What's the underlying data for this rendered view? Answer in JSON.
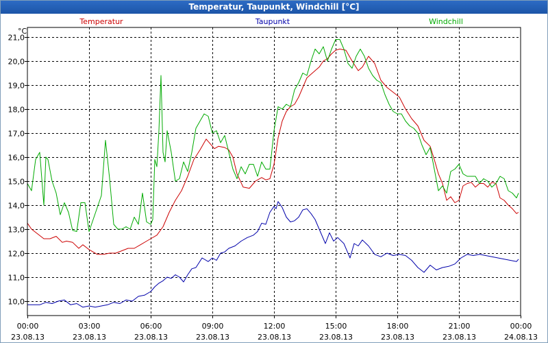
{
  "window": {
    "title": "Temperatur, Taupunkt, Windchill [°C]"
  },
  "chart_data": {
    "type": "line",
    "title": "Temperatur, Taupunkt, Windchill [°C]",
    "ylabel": "°C",
    "ylim": [
      9.4,
      21.4
    ],
    "xlim": [
      0,
      24
    ],
    "grid": true,
    "y_ticks": [
      "10,0",
      "11,0",
      "12,0",
      "13,0",
      "14,0",
      "15,0",
      "16,0",
      "17,0",
      "18,0",
      "19,0",
      "20,0",
      "21,0"
    ],
    "y_tick_values": [
      10,
      11,
      12,
      13,
      14,
      15,
      16,
      17,
      18,
      19,
      20,
      21
    ],
    "x_tick_values": [
      0,
      3,
      6,
      9,
      12,
      15,
      18,
      21,
      24
    ],
    "x_ticks_time": [
      "00:00",
      "03:00",
      "06:00",
      "09:00",
      "12:00",
      "15:00",
      "18:00",
      "21:00",
      "00:00"
    ],
    "x_ticks_date": [
      "23.08.13",
      "23.08.13",
      "23.08.13",
      "23.08.13",
      "23.08.13",
      "23.08.13",
      "23.08.13",
      "23.08.13",
      "24.08.13"
    ],
    "legend_position": "top",
    "series": [
      {
        "name": "Temperatur",
        "color": "#cc0000",
        "x": [
          0,
          0.2,
          0.5,
          0.8,
          1.1,
          1.4,
          1.7,
          1.9,
          2.2,
          2.5,
          2.7,
          3.0,
          3.2,
          3.4,
          3.7,
          4.0,
          4.3,
          4.6,
          4.9,
          5.2,
          5.5,
          5.8,
          6.0,
          6.3,
          6.6,
          6.9,
          7.2,
          7.5,
          7.8,
          8.1,
          8.4,
          8.7,
          8.9,
          9.1,
          9.3,
          9.6,
          9.8,
          10.0,
          10.2,
          10.5,
          10.8,
          11.1,
          11.4,
          11.6,
          11.8,
          12.0,
          12.2,
          12.4,
          12.6,
          12.8,
          13.0,
          13.2,
          13.4,
          13.6,
          13.8,
          14.0,
          14.2,
          14.4,
          14.6,
          14.8,
          15.0,
          15.2,
          15.5,
          15.8,
          16.1,
          16.3,
          16.6,
          16.9,
          17.2,
          17.5,
          17.8,
          18.1,
          18.4,
          18.7,
          19.0,
          19.3,
          19.6,
          19.8,
          20.0,
          20.2,
          20.4,
          20.6,
          20.8,
          21.0,
          21.2,
          21.4,
          21.6,
          21.8,
          22.0,
          22.2,
          22.4,
          22.6,
          22.8,
          23.0,
          23.2,
          23.4,
          23.6,
          23.8,
          23.9
        ],
        "values": [
          13.25,
          13.0,
          12.8,
          12.6,
          12.6,
          12.7,
          12.45,
          12.5,
          12.45,
          12.2,
          12.35,
          12.15,
          12.05,
          11.95,
          11.95,
          12.0,
          12.0,
          12.1,
          12.2,
          12.2,
          12.35,
          12.5,
          12.6,
          12.75,
          13.1,
          13.7,
          14.2,
          14.6,
          15.2,
          15.9,
          16.3,
          16.75,
          16.55,
          16.35,
          16.45,
          16.4,
          16.3,
          16.0,
          15.3,
          14.75,
          14.7,
          15.0,
          15.15,
          15.05,
          15.1,
          15.7,
          16.8,
          17.5,
          17.9,
          18.1,
          18.2,
          18.5,
          18.9,
          19.3,
          19.45,
          19.6,
          19.75,
          20.0,
          20.1,
          20.3,
          20.45,
          20.5,
          20.45,
          20.0,
          19.6,
          19.75,
          20.2,
          19.9,
          19.2,
          18.9,
          18.7,
          18.5,
          18.0,
          17.6,
          17.3,
          16.7,
          16.45,
          15.9,
          15.3,
          14.9,
          14.2,
          14.35,
          14.1,
          14.2,
          14.8,
          14.9,
          14.95,
          14.75,
          14.9,
          14.9,
          14.75,
          14.95,
          14.9,
          14.3,
          14.2,
          14.0,
          13.85,
          13.65,
          13.7
        ]
      },
      {
        "name": "Taupunkt",
        "color": "#0000aa",
        "x": [
          0,
          0.3,
          0.6,
          0.9,
          1.2,
          1.5,
          1.8,
          2.1,
          2.4,
          2.7,
          3.0,
          3.3,
          3.6,
          3.9,
          4.2,
          4.5,
          4.8,
          5.1,
          5.4,
          5.7,
          6.0,
          6.2,
          6.4,
          6.6,
          6.8,
          7.0,
          7.2,
          7.4,
          7.6,
          7.8,
          8.0,
          8.2,
          8.5,
          8.8,
          9.0,
          9.2,
          9.4,
          9.6,
          9.8,
          10.1,
          10.4,
          10.7,
          11.0,
          11.2,
          11.4,
          11.6,
          11.8,
          12.0,
          12.1,
          12.2,
          12.4,
          12.6,
          12.8,
          13.0,
          13.2,
          13.4,
          13.6,
          13.8,
          14.0,
          14.2,
          14.5,
          14.7,
          14.9,
          15.1,
          15.4,
          15.7,
          15.9,
          16.1,
          16.3,
          16.6,
          16.9,
          17.2,
          17.5,
          17.8,
          18.1,
          18.4,
          18.7,
          19.0,
          19.3,
          19.6,
          19.9,
          20.2,
          20.5,
          20.8,
          21.1,
          21.4,
          21.7,
          22.0,
          22.3,
          22.6,
          22.9,
          23.2,
          23.5,
          23.8,
          23.9
        ],
        "values": [
          9.85,
          9.85,
          9.85,
          9.95,
          9.9,
          10.0,
          10.05,
          9.85,
          9.9,
          9.75,
          9.8,
          9.75,
          9.8,
          9.85,
          9.95,
          9.9,
          10.05,
          10.0,
          10.2,
          10.25,
          10.4,
          10.6,
          10.75,
          10.85,
          11.0,
          10.95,
          11.1,
          11.0,
          10.8,
          11.1,
          11.35,
          11.4,
          11.8,
          11.65,
          11.8,
          11.7,
          12.0,
          12.05,
          12.2,
          12.3,
          12.5,
          12.65,
          12.75,
          12.9,
          13.25,
          13.2,
          13.7,
          13.95,
          13.85,
          14.15,
          13.9,
          13.5,
          13.3,
          13.35,
          13.5,
          13.8,
          13.85,
          13.65,
          13.4,
          13.0,
          12.4,
          12.85,
          12.5,
          12.65,
          12.4,
          11.8,
          12.4,
          12.3,
          12.55,
          12.3,
          11.95,
          11.85,
          12.0,
          11.9,
          11.95,
          11.9,
          11.7,
          11.4,
          11.2,
          11.5,
          11.3,
          11.4,
          11.45,
          11.55,
          11.8,
          11.95,
          11.9,
          11.95,
          11.9,
          11.85,
          11.8,
          11.75,
          11.7,
          11.65,
          11.75
        ]
      },
      {
        "name": "Windchill",
        "color": "#00aa00",
        "x": [
          0,
          0.2,
          0.4,
          0.6,
          0.8,
          0.9,
          1.0,
          1.2,
          1.4,
          1.6,
          1.8,
          2.0,
          2.2,
          2.4,
          2.6,
          2.8,
          3.0,
          3.2,
          3.4,
          3.6,
          3.8,
          4.0,
          4.2,
          4.4,
          4.6,
          4.8,
          5.0,
          5.2,
          5.4,
          5.6,
          5.8,
          6.0,
          6.1,
          6.2,
          6.3,
          6.4,
          6.5,
          6.6,
          6.7,
          6.8,
          7.0,
          7.2,
          7.4,
          7.6,
          7.8,
          8.0,
          8.2,
          8.4,
          8.6,
          8.8,
          9.0,
          9.2,
          9.4,
          9.6,
          9.8,
          10.0,
          10.2,
          10.4,
          10.6,
          10.8,
          11.0,
          11.2,
          11.4,
          11.6,
          11.8,
          12.0,
          12.2,
          12.4,
          12.6,
          12.8,
          13.0,
          13.2,
          13.4,
          13.6,
          13.8,
          14.0,
          14.2,
          14.4,
          14.6,
          14.8,
          15.0,
          15.2,
          15.4,
          15.6,
          15.8,
          16.0,
          16.2,
          16.4,
          16.6,
          16.8,
          17.0,
          17.2,
          17.4,
          17.6,
          17.8,
          18.0,
          18.2,
          18.4,
          18.6,
          18.8,
          19.0,
          19.2,
          19.4,
          19.6,
          19.8,
          20.0,
          20.2,
          20.4,
          20.6,
          20.8,
          21.0,
          21.2,
          21.4,
          21.6,
          21.8,
          22.0,
          22.2,
          22.4,
          22.6,
          22.8,
          23.0,
          23.2,
          23.4,
          23.6,
          23.8,
          23.9
        ],
        "values": [
          14.9,
          14.6,
          15.9,
          16.2,
          14.0,
          16.0,
          15.9,
          15.0,
          14.5,
          13.6,
          14.1,
          13.7,
          12.95,
          12.9,
          14.1,
          14.1,
          12.9,
          13.4,
          13.9,
          14.4,
          16.7,
          15.1,
          13.2,
          13.0,
          13.0,
          13.1,
          13.0,
          13.5,
          13.2,
          14.5,
          13.3,
          13.2,
          13.4,
          15.9,
          15.6,
          17.1,
          19.4,
          16.2,
          15.8,
          17.1,
          16.2,
          15.0,
          15.1,
          15.8,
          15.4,
          16.2,
          17.2,
          17.5,
          17.8,
          17.7,
          17.0,
          17.1,
          16.6,
          16.9,
          16.2,
          15.5,
          15.1,
          15.6,
          15.3,
          15.7,
          15.7,
          15.2,
          15.8,
          15.5,
          15.5,
          17.1,
          18.1,
          18.0,
          18.2,
          18.1,
          18.8,
          19.1,
          19.5,
          19.4,
          20.0,
          20.5,
          20.3,
          20.6,
          20.0,
          20.5,
          20.9,
          20.9,
          20.5,
          19.9,
          19.7,
          20.2,
          20.5,
          20.2,
          19.7,
          19.4,
          19.2,
          19.1,
          18.6,
          18.2,
          17.9,
          17.8,
          17.8,
          17.5,
          17.3,
          17.2,
          17.0,
          16.5,
          16.1,
          16.4,
          15.5,
          14.6,
          14.8,
          14.5,
          15.4,
          15.5,
          15.7,
          15.3,
          15.2,
          15.2,
          15.2,
          14.9,
          15.1,
          15.0,
          14.75,
          14.9,
          15.2,
          15.1,
          14.6,
          14.5,
          14.3,
          14.5
        ]
      }
    ]
  }
}
